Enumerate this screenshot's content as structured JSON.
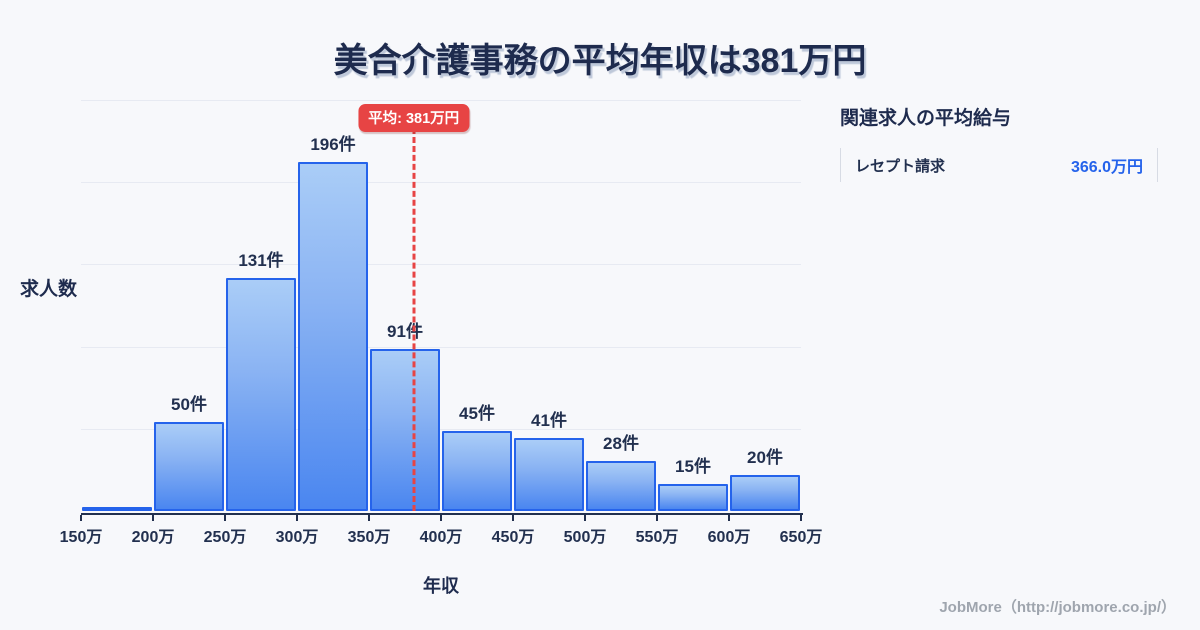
{
  "title": "美合介護事務の平均年収は381万円",
  "chart_data": {
    "type": "bar",
    "title": "美合介護事務の平均年収は381万円",
    "xlabel": "年収",
    "ylabel": "求人数",
    "categories": [
      "150万",
      "200万",
      "250万",
      "300万",
      "350万",
      "400万",
      "450万",
      "500万",
      "550万",
      "600万",
      "650万"
    ],
    "values": [
      2,
      50,
      131,
      196,
      91,
      45,
      41,
      28,
      15,
      20
    ],
    "bar_labels": [
      "",
      "50件",
      "131件",
      "196件",
      "91件",
      "45件",
      "41件",
      "28件",
      "15件",
      "20件"
    ],
    "xlim": [
      150,
      650
    ],
    "ylim": [
      0,
      231
    ],
    "grid": true,
    "legend": false,
    "average": {
      "value": 381,
      "label": "平均: 381万円"
    }
  },
  "side_panel": {
    "title": "関連求人の平均給与",
    "rows": [
      {
        "label": "レセプト請求",
        "value": "366.0万円"
      }
    ]
  },
  "footer": {
    "credit": "JobMore（http://jobmore.co.jp/）"
  },
  "colors": {
    "background": "#f7f8fb",
    "bar_gradient_top": "#aacdf7",
    "bar_gradient_bottom": "#4a86f0",
    "bar_border": "#2563eb",
    "axis": "#22304f",
    "grid": "#e7eaf2",
    "average_red": "#e74444",
    "value_blue": "#2563eb",
    "text_dark": "#1e2b4e",
    "credit_gray": "#9fa5ae"
  }
}
